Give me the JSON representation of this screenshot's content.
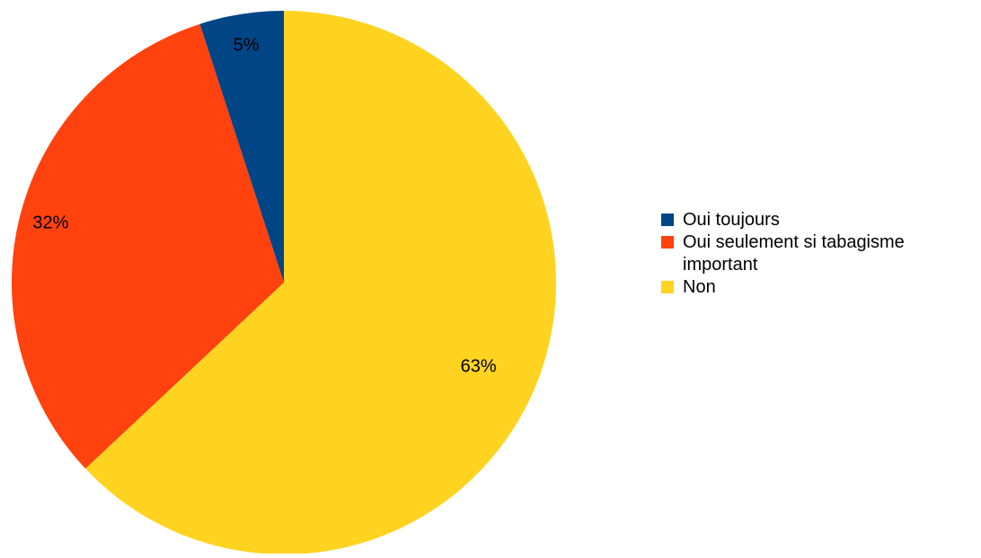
{
  "chart_data": {
    "type": "pie",
    "title": "",
    "legend_position": "right",
    "categories": [
      "Oui toujours",
      "Oui seulement si tabagisme important",
      "Non"
    ],
    "values": [
      5,
      32,
      63
    ],
    "labels": [
      "5%",
      "32%",
      "63%"
    ],
    "colors": [
      "#004586",
      "#ff420e",
      "#ffd320"
    ],
    "start_angle": "12 o'clock",
    "direction": "counter-clockwise"
  },
  "legend": {
    "items": [
      {
        "label": "Oui toujours",
        "color": "#004586"
      },
      {
        "label": "Oui seulement si tabagisme important",
        "color": "#ff420e"
      },
      {
        "label": "Non",
        "color": "#ffd320"
      }
    ]
  }
}
